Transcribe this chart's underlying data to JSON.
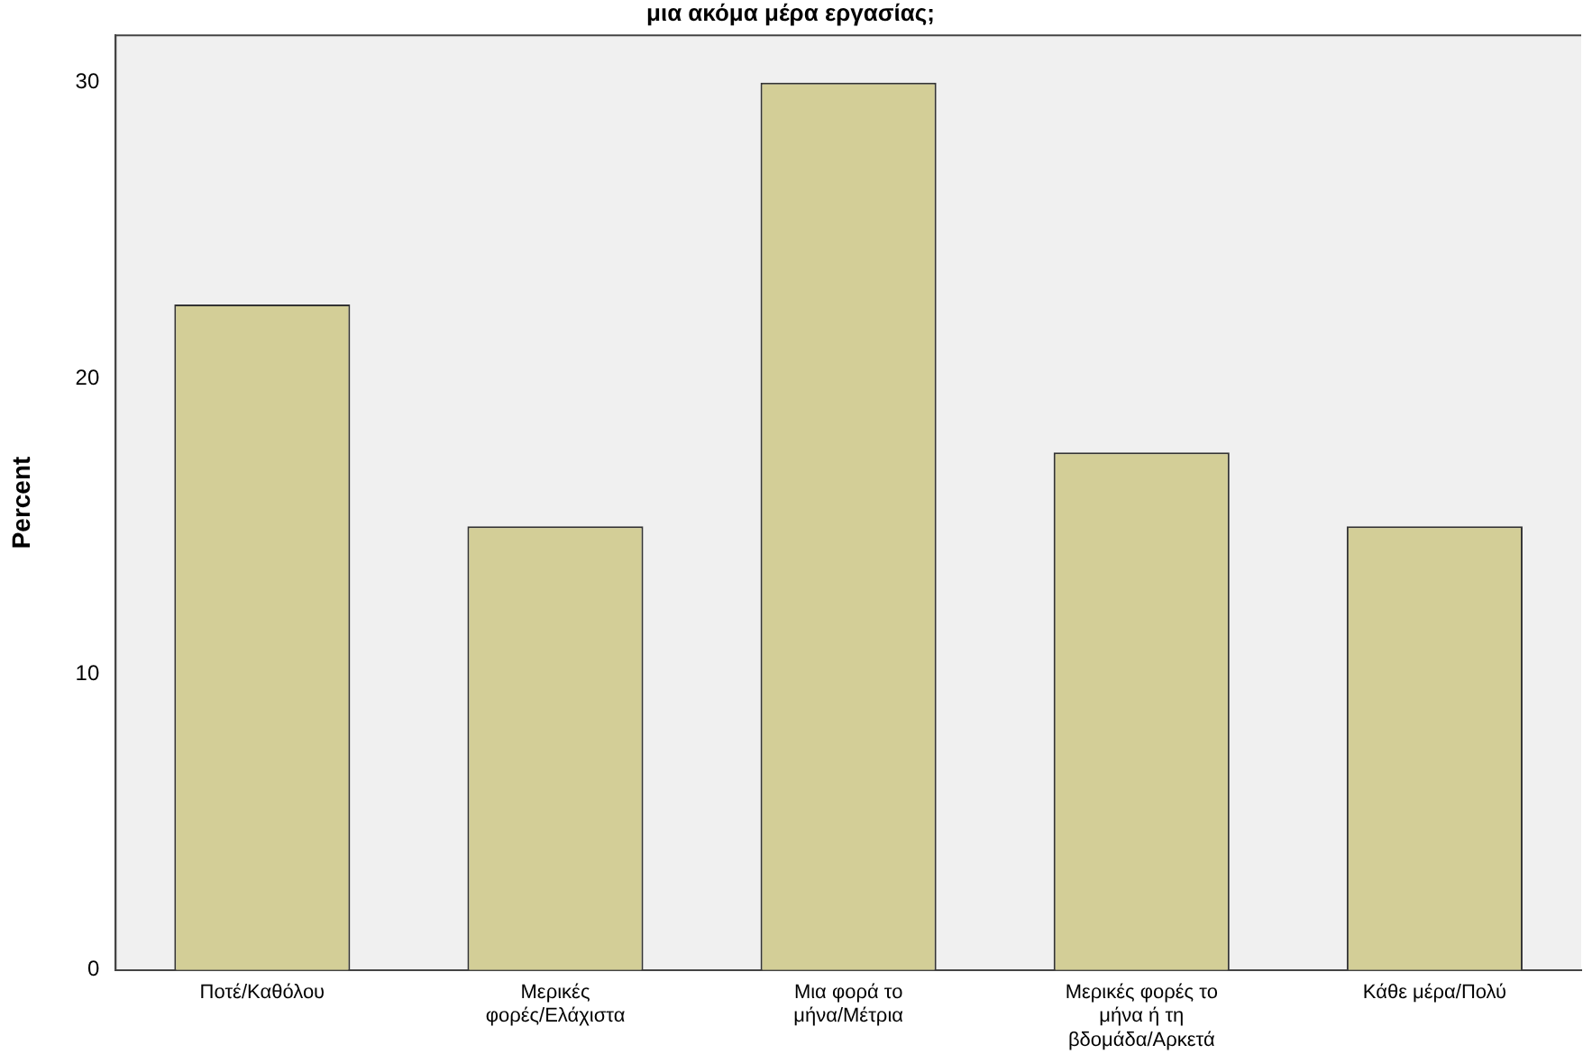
{
  "chart_data": {
    "type": "bar",
    "title": "μια ακόμα μέρα εργασίας;",
    "ylabel": "Percent",
    "categories": [
      [
        "Ποτέ/Καθόλου"
      ],
      [
        "Μερικές",
        "φορές/Ελάχιστα"
      ],
      [
        "Μια φορά το",
        "μήνα/Μέτρια"
      ],
      [
        "Μερικές φορές το",
        "μήνα ή τη",
        "βδομάδα/Αρκετά"
      ],
      [
        "Κάθε μέρα/Πολύ"
      ]
    ],
    "values": [
      22.5,
      15,
      30,
      17.5,
      15
    ],
    "color": "#d3ce97",
    "ylim": [
      0,
      31.6
    ],
    "yticks": [
      0,
      10,
      20,
      30
    ],
    "grid": false,
    "legend": false
  }
}
